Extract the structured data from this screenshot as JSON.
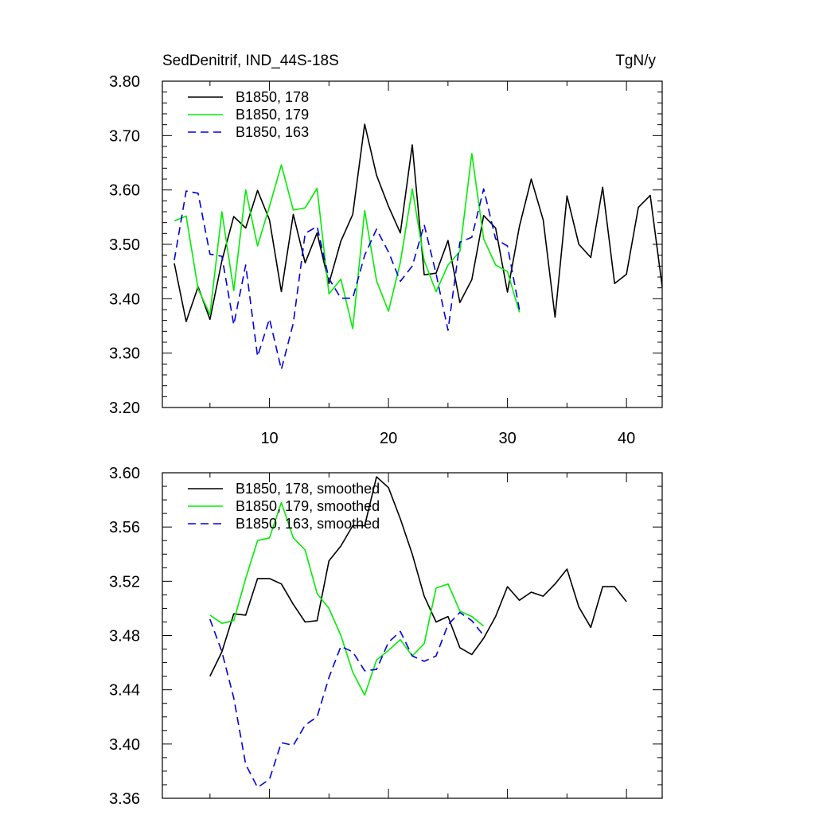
{
  "colors": {
    "series_178": "#000000",
    "series_179": "#00ee00",
    "series_163": "#0000dd",
    "axes": "#000000",
    "background": "#ffffff"
  },
  "chart_data": [
    {
      "type": "line",
      "title": "SedDenitrif, IND_44S-18S",
      "units_label": "TgN/y",
      "xlim": [
        1,
        43
      ],
      "ylim": [
        3.2,
        3.8
      ],
      "x_ticks": [
        10,
        20,
        30,
        40
      ],
      "y_ticks": [
        "3.20",
        "3.30",
        "3.40",
        "3.50",
        "3.60",
        "3.70",
        "3.80"
      ],
      "legend_position": "top-left",
      "grid": false,
      "series": [
        {
          "name": "B1850, 178",
          "style": "solid",
          "color": "#000000",
          "x_start": 2,
          "values": [
            3.465,
            3.358,
            3.422,
            3.362,
            3.47,
            3.551,
            3.53,
            3.599,
            3.545,
            3.413,
            3.555,
            3.466,
            3.521,
            3.428,
            3.506,
            3.555,
            3.721,
            3.627,
            3.57,
            3.521,
            3.683,
            3.444,
            3.447,
            3.507,
            3.393,
            3.435,
            3.553,
            3.53,
            3.412,
            3.533,
            3.62,
            3.545,
            3.366,
            3.589,
            3.5,
            3.476,
            3.605,
            3.428,
            3.445,
            3.568,
            3.59,
            3.422
          ]
        },
        {
          "name": "B1850, 179",
          "style": "solid",
          "color": "#00ee00",
          "x_start": 2,
          "values": [
            3.543,
            3.552,
            3.418,
            3.371,
            3.56,
            3.415,
            3.6,
            3.497,
            3.57,
            3.646,
            3.563,
            3.567,
            3.603,
            3.409,
            3.436,
            3.345,
            3.562,
            3.433,
            3.377,
            3.467,
            3.602,
            3.47,
            3.413,
            3.462,
            3.487,
            3.667,
            3.51,
            3.462,
            3.45,
            3.375
          ]
        },
        {
          "name": "B1850, 163",
          "style": "dashed",
          "color": "#0000dd",
          "x_start": 2,
          "values": [
            3.471,
            3.598,
            3.594,
            3.482,
            3.478,
            3.352,
            3.462,
            3.294,
            3.363,
            3.27,
            3.355,
            3.52,
            3.533,
            3.437,
            3.401,
            3.401,
            3.48,
            3.528,
            3.486,
            3.432,
            3.46,
            3.536,
            3.446,
            3.342,
            3.504,
            3.513,
            3.602,
            3.51,
            3.497,
            3.38
          ]
        }
      ]
    },
    {
      "type": "line",
      "xlim": [
        1,
        43
      ],
      "ylim": [
        3.36,
        3.6
      ],
      "x_ticks": [
        10,
        20,
        30,
        40
      ],
      "y_ticks": [
        "3.36",
        "3.40",
        "3.44",
        "3.48",
        "3.52",
        "3.56",
        "3.60"
      ],
      "legend_position": "top-left",
      "grid": false,
      "series": [
        {
          "name": "B1850, 178, smoothed",
          "style": "solid",
          "color": "#000000",
          "x_start": 5,
          "values": [
            3.45,
            3.468,
            3.496,
            3.495,
            3.522,
            3.522,
            3.518,
            3.503,
            3.49,
            3.491,
            3.535,
            3.546,
            3.561,
            3.561,
            3.597,
            3.589,
            3.566,
            3.54,
            3.509,
            3.49,
            3.494,
            3.471,
            3.466,
            3.478,
            3.494,
            3.516,
            3.506,
            3.512,
            3.509,
            3.518,
            3.529,
            3.501,
            3.486,
            3.516,
            3.516,
            3.505
          ]
        },
        {
          "name": "B1850, 179, smoothed",
          "style": "solid",
          "color": "#00ee00",
          "x_start": 5,
          "values": [
            3.495,
            3.489,
            3.491,
            3.522,
            3.55,
            3.552,
            3.578,
            3.552,
            3.543,
            3.511,
            3.5,
            3.48,
            3.453,
            3.436,
            3.462,
            3.469,
            3.477,
            3.465,
            3.474,
            3.515,
            3.518,
            3.498,
            3.494,
            3.487
          ]
        },
        {
          "name": "B1850, 163, smoothed",
          "style": "dashed",
          "color": "#0000dd",
          "x_start": 5,
          "values": [
            3.492,
            3.468,
            3.434,
            3.385,
            3.368,
            3.374,
            3.401,
            3.399,
            3.414,
            3.42,
            3.449,
            3.472,
            3.468,
            3.454,
            3.455,
            3.475,
            3.483,
            3.465,
            3.461,
            3.465,
            3.488,
            3.497,
            3.491,
            3.48
          ]
        }
      ]
    }
  ]
}
